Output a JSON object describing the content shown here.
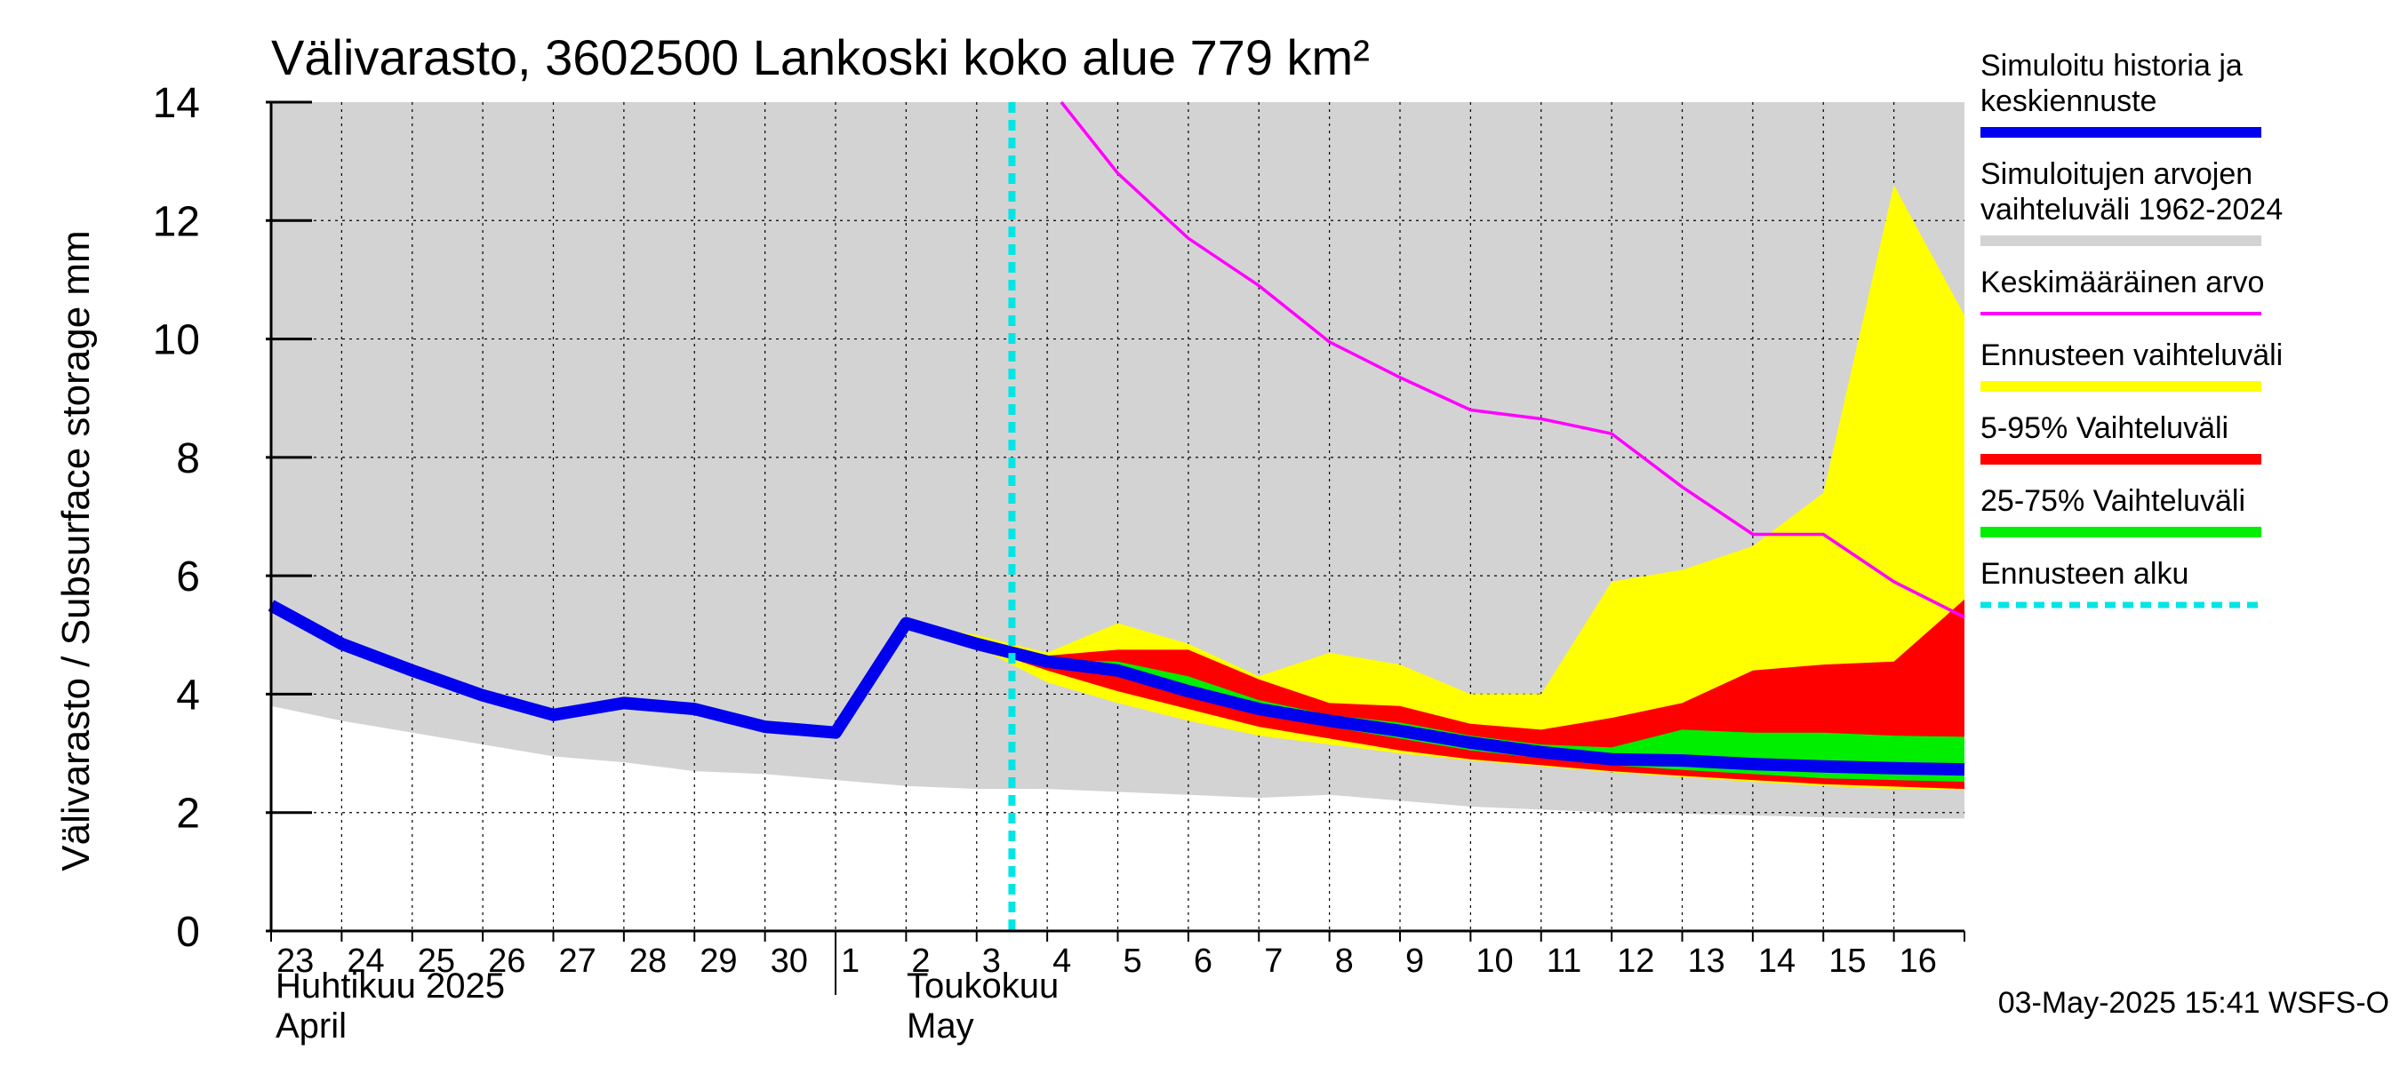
{
  "chart_data": {
    "type": "area",
    "title": "Välivarasto, 3602500 Lankoski koko alue 779 km²",
    "ylabel": "Välivarasto / Subsurface storage  mm",
    "ylim": [
      0,
      14
    ],
    "yticks": [
      0,
      2,
      4,
      6,
      8,
      10,
      12,
      14
    ],
    "xlim": [
      0,
      24
    ],
    "x_tick_labels": [
      "23",
      "24",
      "25",
      "26",
      "27",
      "28",
      "29",
      "30",
      "1",
      "2",
      "3",
      "4",
      "5",
      "6",
      "7",
      "8",
      "9",
      "10",
      "11",
      "12",
      "13",
      "14",
      "15",
      "16"
    ],
    "month_labels": {
      "april_fi": "Huhtikuu  2025",
      "april_en": "April",
      "may_fi": "Toukokuu",
      "may_en": "May"
    },
    "forecast_start_x": 10.5,
    "timestamp": "03-May-2025 15:41 WSFS-O",
    "colors": {
      "history": "#0000ee",
      "sim_range": "#d3d3d3",
      "mean": "#ff00ff",
      "forecast_range": "#ffff00",
      "p5_95": "#ff0000",
      "p25_75": "#00ee00",
      "forecast_start": "#00e5e5"
    },
    "legend": [
      {
        "key": "history",
        "label": "Simuloitu historia ja keskiennuste"
      },
      {
        "key": "sim_range",
        "label": "Simuloitujen arvojen vaihteluväli 1962-2024"
      },
      {
        "key": "mean",
        "label": "Keskimääräinen arvo"
      },
      {
        "key": "forecast_range",
        "label": "Ennusteen vaihteluväli"
      },
      {
        "key": "p5_95",
        "label": "5-95% Vaihteluväli"
      },
      {
        "key": "p25_75",
        "label": "25-75% Vaihteluväli"
      },
      {
        "key": "forecast_start",
        "label": "Ennusteen alku"
      }
    ],
    "series": {
      "sim_range": {
        "x": [
          0,
          1,
          2,
          3,
          4,
          5,
          6,
          7,
          8,
          9,
          10,
          11,
          12,
          13,
          14,
          15,
          16,
          17,
          18,
          19,
          20,
          21,
          22,
          23,
          24
        ],
        "upper": [
          14,
          14,
          14,
          14,
          14,
          14,
          14,
          14,
          14,
          14,
          14,
          14,
          14,
          14,
          14,
          14,
          14,
          14,
          14,
          14,
          14,
          14,
          14,
          14,
          14
        ],
        "lower": [
          3.8,
          3.55,
          3.35,
          3.15,
          2.95,
          2.85,
          2.7,
          2.65,
          2.55,
          2.45,
          2.4,
          2.4,
          2.35,
          2.3,
          2.25,
          2.3,
          2.2,
          2.1,
          2.05,
          2.0,
          1.98,
          1.95,
          1.92,
          1.9,
          1.9
        ]
      },
      "history": {
        "x": [
          0,
          1,
          2,
          3,
          4,
          5,
          6,
          7,
          8,
          9,
          10,
          11,
          12,
          13,
          14,
          15,
          16,
          17,
          18,
          19,
          20,
          21,
          22,
          23,
          24
        ],
        "y": [
          5.5,
          4.85,
          4.4,
          3.98,
          3.65,
          3.85,
          3.75,
          3.45,
          3.35,
          5.2,
          4.85,
          4.55,
          4.4,
          4.05,
          3.75,
          3.55,
          3.38,
          3.18,
          3.02,
          2.9,
          2.88,
          2.82,
          2.78,
          2.75,
          2.73
        ]
      },
      "mean": {
        "x": [
          11.2,
          12,
          13,
          14,
          15,
          16,
          17,
          18,
          19,
          20,
          21,
          22,
          23,
          24
        ],
        "y": [
          14.0,
          12.8,
          11.7,
          10.9,
          9.95,
          9.35,
          8.8,
          8.65,
          8.4,
          7.5,
          6.7,
          6.7,
          5.9,
          5.3
        ]
      },
      "forecast_range": {
        "x": [
          9,
          10,
          11,
          12,
          13,
          14,
          15,
          16,
          17,
          18,
          19,
          20,
          21,
          22,
          23,
          24
        ],
        "upper": [
          5.2,
          5.0,
          4.7,
          5.2,
          4.85,
          4.3,
          4.7,
          4.5,
          4.0,
          4.0,
          5.9,
          6.1,
          6.5,
          7.4,
          12.6,
          10.4
        ],
        "lower": [
          5.2,
          4.8,
          4.2,
          3.85,
          3.55,
          3.3,
          3.15,
          3.0,
          2.88,
          2.78,
          2.68,
          2.6,
          2.52,
          2.45,
          2.4,
          2.38
        ]
      },
      "p5_95": {
        "x": [
          9,
          10,
          11,
          12,
          13,
          14,
          15,
          16,
          17,
          18,
          19,
          20,
          21,
          22,
          23,
          24
        ],
        "upper": [
          5.2,
          4.9,
          4.65,
          4.75,
          4.75,
          4.25,
          3.85,
          3.8,
          3.5,
          3.4,
          3.6,
          3.85,
          4.4,
          4.5,
          4.55,
          5.6
        ],
        "lower": [
          5.2,
          4.8,
          4.4,
          4.05,
          3.75,
          3.45,
          3.25,
          3.05,
          2.9,
          2.8,
          2.7,
          2.62,
          2.55,
          2.48,
          2.44,
          2.4
        ]
      },
      "p25_75": {
        "x": [
          9,
          10,
          11,
          12,
          13,
          14,
          15,
          16,
          17,
          18,
          19,
          20,
          21,
          22,
          23,
          24
        ],
        "upper": [
          5.2,
          4.87,
          4.58,
          4.55,
          4.3,
          3.9,
          3.65,
          3.52,
          3.3,
          3.15,
          3.1,
          3.4,
          3.35,
          3.35,
          3.3,
          3.28
        ],
        "lower": [
          5.2,
          4.83,
          4.48,
          4.3,
          4.0,
          3.65,
          3.45,
          3.25,
          3.05,
          2.92,
          2.8,
          2.72,
          2.65,
          2.58,
          2.55,
          2.52
        ]
      }
    }
  }
}
